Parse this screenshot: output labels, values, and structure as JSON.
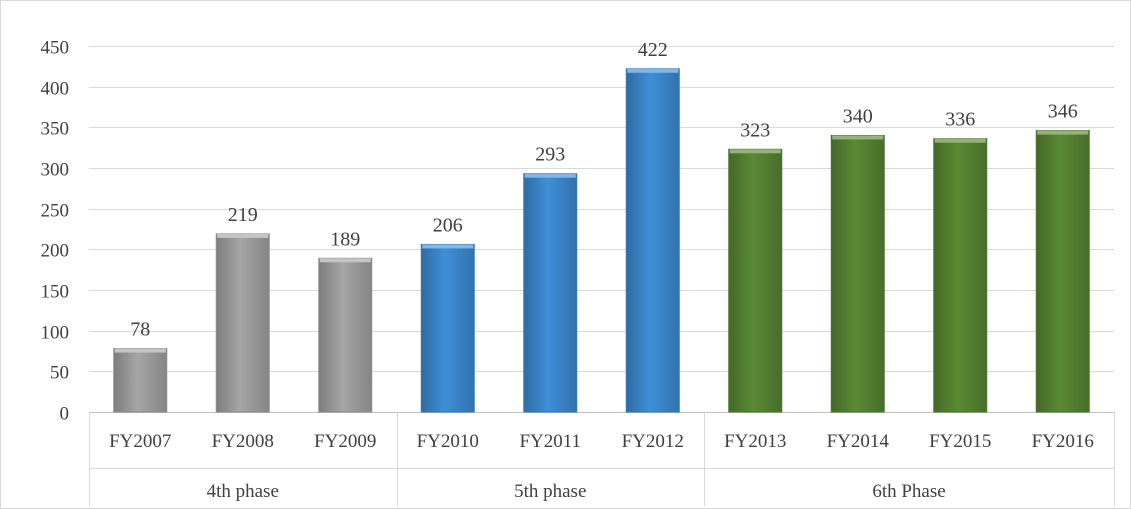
{
  "chart_data": {
    "type": "bar",
    "title": "",
    "xlabel": "",
    "ylabel": "",
    "ylim": [
      0,
      450
    ],
    "yticks": [
      0,
      50,
      100,
      150,
      200,
      250,
      300,
      350,
      400,
      450
    ],
    "grid": true,
    "legend": "none",
    "categories": [
      "FY2007",
      "FY2008",
      "FY2009",
      "FY2010",
      "FY2011",
      "FY2012",
      "FY2013",
      "FY2014",
      "FY2015",
      "FY2016"
    ],
    "values": [
      78,
      219,
      189,
      206,
      293,
      422,
      323,
      340,
      336,
      346
    ],
    "groups": [
      {
        "label": "4th phase",
        "categories": [
          "FY2007",
          "FY2008",
          "FY2009"
        ],
        "color": "#a6a6a6"
      },
      {
        "label": "5th phase",
        "categories": [
          "FY2010",
          "FY2011",
          "FY2012"
        ],
        "color": "#3e8fd8"
      },
      {
        "label": "6th Phase",
        "categories": [
          "FY2013",
          "FY2014",
          "FY2015",
          "FY2016"
        ],
        "color": "#5a8a34"
      }
    ]
  }
}
